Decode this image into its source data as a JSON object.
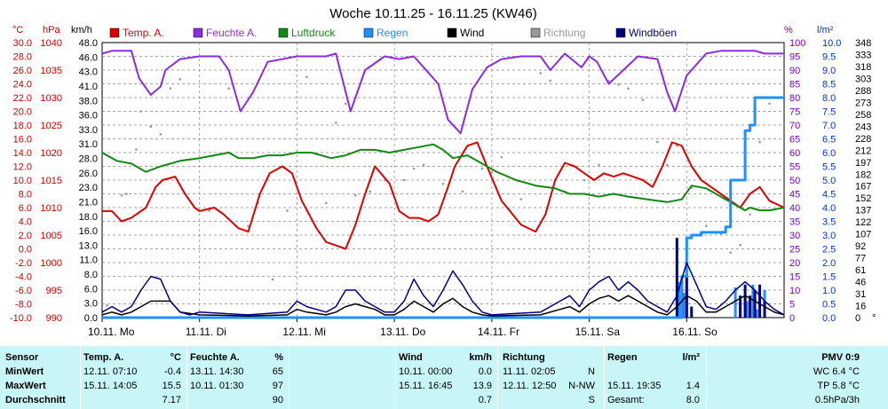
{
  "chart_data": {
    "type": "line",
    "title": "Woche 10.11.25 - 16.11.25 (KW46)",
    "axes": {
      "temp": {
        "unit": "°C",
        "range": [
          -10,
          30
        ],
        "ticks": [
          "30.0",
          "28.0",
          "26.0",
          "24.0",
          "22.0",
          "20.0",
          "18.0",
          "16.0",
          "14.0",
          "12.0",
          "10.0",
          "8.0",
          "6.0",
          "4.0",
          "2.0",
          "0.0",
          "-2.0",
          "-4.0",
          "-6.0",
          "-8.0",
          "-10.0"
        ],
        "color": "#cc0000"
      },
      "pressure": {
        "unit": "hPa",
        "range": [
          990,
          1040
        ],
        "ticks": [
          "1040",
          "1035",
          "1030",
          "1025",
          "1020",
          "1015",
          "1010",
          "1005",
          "1000",
          "995",
          "990"
        ],
        "color": "#cc0000"
      },
      "wind": {
        "unit": "km/h",
        "range": [
          0,
          50
        ],
        "ticks": [
          "48.0",
          "46.0",
          "43.0",
          "41.0",
          "38.0",
          "36.0",
          "33.0",
          "31.0",
          "28.0",
          "26.0",
          "23.0",
          "21.0",
          "18.0",
          "16.0",
          "13.0",
          "11.0",
          "8.0",
          "6.0",
          "3.0",
          "0.0"
        ],
        "color": "#000000"
      },
      "humidity": {
        "unit": "%",
        "range": [
          0,
          100
        ],
        "ticks": [
          "100",
          "95",
          "90",
          "85",
          "80",
          "75",
          "70",
          "65",
          "60",
          "55",
          "50",
          "45",
          "40",
          "35",
          "30",
          "25",
          "20",
          "15",
          "10",
          "5",
          "0"
        ],
        "color": "#7b00cc"
      },
      "rain": {
        "unit": "l/m²",
        "range": [
          0,
          10
        ],
        "ticks": [
          "10.0",
          "9.5",
          "9.0",
          "8.5",
          "8.0",
          "7.5",
          "7.0",
          "6.5",
          "6.0",
          "5.5",
          "5.0",
          "4.5",
          "4.0",
          "3.5",
          "3.0",
          "2.5",
          "2.0",
          "1.5",
          "1.0",
          "0.5",
          "0.0"
        ],
        "color": "#0033cc"
      },
      "direction": {
        "unit": "°",
        "range": [
          0,
          360
        ],
        "ticks": [
          "348",
          "333",
          "318",
          "303",
          "288",
          "273",
          "258",
          "243",
          "228",
          "212",
          "197",
          "182",
          "167",
          "152",
          "137",
          "122",
          "107",
          "92",
          "77",
          "61",
          "46",
          "31",
          "16",
          "0"
        ],
        "color": "#000000"
      }
    },
    "days": [
      "10.11. Mo",
      "11.11. Di",
      "12.11. Mi",
      "13.11. Do",
      "14.11. Fr",
      "15.11. Sa",
      "16.11. So"
    ],
    "legend": [
      {
        "label": "Temp. A.",
        "color": "#dd0000"
      },
      {
        "label": "Feuchte A.",
        "color": "#8b2be2"
      },
      {
        "label": "Luftdruck",
        "color": "#118811"
      },
      {
        "label": "Regen",
        "color": "#1e90ff"
      },
      {
        "label": "Wind",
        "color": "#000000"
      },
      {
        "label": "Richtung",
        "color": "#999999"
      },
      {
        "label": "Windböen",
        "color": "#000080"
      }
    ],
    "series": [
      {
        "name": "Temp. A.",
        "axis": "temp",
        "color": "#dd0000",
        "x": [
          0,
          0.1,
          0.2,
          0.3,
          0.45,
          0.55,
          0.62,
          0.75,
          0.85,
          0.95,
          1.0,
          1.15,
          1.25,
          1.4,
          1.5,
          1.62,
          1.72,
          1.85,
          1.95,
          2.05,
          2.2,
          2.3,
          2.4,
          2.5,
          2.6,
          2.7,
          2.8,
          2.95,
          3.05,
          3.15,
          3.25,
          3.35,
          3.45,
          3.55,
          3.62,
          3.75,
          3.85,
          3.95,
          4.1,
          4.3,
          4.45,
          4.55,
          4.65,
          4.75,
          4.85,
          4.95,
          5.05,
          5.15,
          5.25,
          5.35,
          5.45,
          5.55,
          5.65,
          5.75,
          5.85,
          5.95,
          6.05,
          6.15,
          6.25,
          6.35,
          6.45,
          6.55,
          6.65,
          6.75,
          6.85,
          7.0
        ],
        "values": [
          5.5,
          5.5,
          4,
          4.5,
          6,
          9,
          10,
          10.5,
          8,
          6,
          5.5,
          6,
          5,
          3,
          2.5,
          8,
          11,
          12,
          11,
          7,
          3,
          1,
          0.5,
          0,
          3.5,
          8,
          12,
          9.5,
          5.5,
          4.5,
          4.5,
          4,
          5,
          9,
          12,
          15,
          15.5,
          12,
          7,
          3.5,
          2.5,
          5,
          10,
          12.5,
          12,
          11,
          10,
          11,
          10.5,
          11,
          10.5,
          10,
          9,
          12,
          15.5,
          15,
          12,
          10,
          9,
          8,
          7,
          6,
          8,
          9,
          7,
          6
        ]
      },
      {
        "name": "Feuchte A.",
        "axis": "humidity",
        "color": "#8b2be2",
        "x": [
          0,
          0.1,
          0.3,
          0.38,
          0.5,
          0.6,
          0.65,
          0.8,
          1.0,
          1.2,
          1.3,
          1.42,
          1.55,
          1.7,
          2.0,
          2.15,
          2.3,
          2.4,
          2.55,
          2.7,
          2.9,
          3.05,
          3.2,
          3.3,
          3.45,
          3.55,
          3.68,
          3.8,
          3.95,
          4.1,
          4.3,
          4.5,
          4.6,
          4.75,
          4.92,
          5.0,
          5.08,
          5.2,
          5.35,
          5.5,
          5.7,
          5.8,
          5.88,
          6.0,
          6.2,
          6.35,
          6.5,
          6.6,
          6.7,
          6.8,
          6.9,
          7.0
        ],
        "values": [
          96,
          97,
          97,
          87,
          81,
          84,
          90,
          94,
          95,
          95,
          90,
          75,
          82,
          93,
          95,
          95,
          95,
          96,
          75,
          90,
          95,
          94,
          95,
          91,
          85,
          72,
          67,
          83,
          91,
          94,
          95,
          95,
          90,
          96,
          91,
          95,
          93,
          85,
          90,
          95,
          94,
          82,
          75,
          88,
          96,
          97,
          97,
          97,
          97,
          96,
          96,
          96
        ]
      },
      {
        "name": "Luftdruck",
        "axis": "pressure",
        "color": "#118811",
        "x": [
          0,
          0.15,
          0.3,
          0.45,
          0.6,
          0.8,
          1.0,
          1.15,
          1.3,
          1.4,
          1.55,
          1.7,
          1.85,
          2.0,
          2.15,
          2.35,
          2.5,
          2.65,
          2.8,
          2.95,
          3.1,
          3.25,
          3.4,
          3.5,
          3.6,
          3.75,
          3.9,
          4.05,
          4.25,
          4.45,
          4.65,
          4.8,
          4.95,
          5.1,
          5.25,
          5.4,
          5.6,
          5.8,
          5.95,
          6.05,
          6.2,
          6.3,
          6.4,
          6.5,
          6.6,
          6.65,
          6.75,
          6.85,
          7.0
        ],
        "values": [
          1020,
          1018.5,
          1018,
          1016.5,
          1017.5,
          1018.5,
          1019,
          1019.5,
          1020,
          1019,
          1019,
          1019.5,
          1019.5,
          1020,
          1020,
          1019,
          1019.5,
          1020.5,
          1020.5,
          1020,
          1020.5,
          1021,
          1021.5,
          1020.5,
          1019,
          1019.5,
          1018,
          1016.5,
          1015,
          1014,
          1013.5,
          1012.5,
          1012.5,
          1012,
          1012.5,
          1012,
          1011.5,
          1011,
          1011.5,
          1014,
          1013.5,
          1012.5,
          1011.5,
          1010.5,
          1009.5,
          1010,
          1009.5,
          1009.5,
          1010
        ]
      },
      {
        "name": "Regen",
        "axis": "rain",
        "color": "#1e90ff",
        "x": [
          0,
          5.9,
          5.95,
          6.0,
          6.05,
          6.1,
          6.15,
          6.3,
          6.4,
          6.45,
          6.55,
          6.6,
          6.65,
          6.7,
          6.75,
          6.8,
          6.85,
          6.9,
          7.0
        ],
        "values": [
          0,
          0,
          1.5,
          2.9,
          3,
          3,
          3.1,
          3.1,
          3.3,
          5,
          5,
          6.8,
          7,
          8,
          8,
          8,
          8,
          8,
          8
        ]
      },
      {
        "name": "Wind",
        "axis": "wind",
        "color": "#000000",
        "x": [
          0,
          0.1,
          0.2,
          0.3,
          0.4,
          0.5,
          0.6,
          0.7,
          0.8,
          1.0,
          1.5,
          1.9,
          2.0,
          2.1,
          2.3,
          2.4,
          2.5,
          2.6,
          2.7,
          2.8,
          2.9,
          3.0,
          3.1,
          3.2,
          3.3,
          3.4,
          3.5,
          3.6,
          3.7,
          3.8,
          3.9,
          4.0,
          4.5,
          4.7,
          4.8,
          4.9,
          5.0,
          5.1,
          5.2,
          5.3,
          5.4,
          5.5,
          5.6,
          5.7,
          5.8,
          5.9,
          6.0,
          6.1,
          6.2,
          6.3,
          6.4,
          6.5,
          6.6,
          6.7,
          6.8,
          6.9,
          7.0
        ],
        "values": [
          0.5,
          1,
          0.5,
          1,
          2,
          3,
          3,
          3,
          1,
          0.5,
          0.3,
          0.5,
          1.5,
          1,
          0.5,
          1,
          2,
          2.5,
          2,
          1.5,
          0.5,
          0.5,
          1.5,
          3,
          2,
          1,
          2.5,
          3.5,
          2,
          1,
          0.5,
          0.3,
          0.5,
          1.5,
          2,
          1,
          2.5,
          3.5,
          4,
          3,
          4,
          3,
          2,
          1,
          0.5,
          2,
          4,
          3,
          1,
          1,
          2,
          3,
          4,
          3,
          2,
          1,
          0.5
        ]
      },
      {
        "name": "Windböen",
        "axis": "wind",
        "color": "#000080",
        "x": [
          0,
          0.1,
          0.2,
          0.3,
          0.4,
          0.5,
          0.6,
          0.7,
          0.8,
          0.9,
          1.0,
          1.5,
          1.9,
          2.0,
          2.1,
          2.3,
          2.4,
          2.5,
          2.6,
          2.7,
          2.8,
          2.9,
          3.0,
          3.1,
          3.2,
          3.3,
          3.4,
          3.5,
          3.6,
          3.7,
          3.8,
          3.9,
          4.0,
          4.5,
          4.7,
          4.8,
          4.9,
          5.0,
          5.1,
          5.2,
          5.3,
          5.4,
          5.5,
          5.6,
          5.7,
          5.8,
          5.9,
          6.0,
          6.1,
          6.2,
          6.3,
          6.4,
          6.5,
          6.6,
          6.7,
          6.8,
          6.9,
          7.0
        ],
        "values": [
          1,
          2,
          1,
          2,
          5,
          7.5,
          7,
          3,
          1,
          0.5,
          1,
          0.5,
          1,
          3,
          2,
          1,
          2,
          5,
          5,
          3,
          2,
          1,
          1,
          3,
          7,
          4,
          2,
          5,
          8.5,
          6,
          3,
          1,
          0.5,
          1,
          3,
          4,
          2,
          5,
          6.5,
          7.5,
          5,
          6.5,
          5,
          3,
          2,
          1,
          4,
          10,
          6,
          2,
          1.5,
          3,
          5,
          6.5,
          5,
          3,
          1.5,
          0.5
        ]
      }
    ],
    "bars": [
      {
        "name": "Regen",
        "axis": "rain",
        "color": "#1e90ff",
        "x": [
          5.92,
          5.97,
          6.0,
          6.5,
          6.55,
          6.6,
          6.62,
          6.68,
          6.72,
          6.8
        ],
        "values": [
          1.3,
          0.9,
          1.4,
          1.1,
          0.4,
          0.8,
          0.6,
          1.2,
          0.3,
          1.0
        ]
      },
      {
        "name": "Windböen",
        "axis": "wind",
        "color": "#000080",
        "x": [
          5.9,
          5.95,
          6.0,
          6.05,
          6.55,
          6.6,
          6.65,
          6.7,
          6.75,
          6.8
        ],
        "values": [
          14.5,
          7,
          8,
          2,
          4,
          6,
          4,
          5,
          6,
          3
        ]
      }
    ],
    "direction_points": {
      "axis": "direction",
      "color": "#999999",
      "x": [
        0.05,
        0.2,
        0.25,
        0.35,
        0.4,
        0.5,
        0.6,
        0.7,
        0.8,
        1.1,
        1.3,
        1.5,
        1.6,
        1.75,
        1.9,
        2.1,
        2.3,
        2.4,
        2.5,
        2.6,
        2.75,
        2.9,
        3.1,
        3.2,
        3.3,
        3.5,
        3.7,
        3.9,
        4.0,
        4.1,
        4.3,
        4.5,
        4.6,
        4.75,
        4.95,
        5.1,
        5.2,
        5.3,
        5.4,
        5.55,
        5.7,
        5.8,
        5.9,
        6.05,
        6.2,
        6.35,
        6.45,
        6.55,
        6.65,
        6.75,
        6.85
      ],
      "values": [
        16,
        160,
        162,
        220,
        270,
        250,
        240,
        300,
        312,
        140,
        300,
        120,
        150,
        50,
        140,
        315,
        150,
        255,
        280,
        160,
        165,
        180,
        180,
        195,
        200,
        175,
        165,
        195,
        190,
        210,
        155,
        320,
        310,
        165,
        180,
        200,
        310,
        305,
        300,
        285,
        230,
        200,
        225,
        170,
        120,
        110,
        85,
        95,
        135,
        230,
        280
      ]
    },
    "stats": {
      "title": "Sensor",
      "rows": [
        "MinWert",
        "MaxWert",
        "Durchschnitt"
      ],
      "temp": {
        "header": "Temp. A.",
        "unit": "°C",
        "min_date": "12.11.  07:10",
        "min": "-0.4",
        "max_date": "15.11.  14:05",
        "max": "15.5",
        "avg": "7.17"
      },
      "humidity": {
        "header": "Feuchte A.",
        "unit": "%",
        "min_date": "13.11.  14:30",
        "min": "65",
        "max_date": "10.11.  01:30",
        "max": "97",
        "avg": "90"
      },
      "wind": {
        "header": "Wind",
        "unit": "km/h",
        "min_date": "10.11.  00:00",
        "min": "0.0",
        "max_date": "15.11.  16:45",
        "max": "13.9",
        "avg": "0.7"
      },
      "direction": {
        "header": "Richtung",
        "min_date": "11.11.  02:05",
        "min": "N",
        "max_date": "12.11.  12:50",
        "max": "N-NW",
        "avg": "S"
      },
      "rain": {
        "header": "Regen",
        "unit": "l/m²",
        "max_date": "15.11.  19:35",
        "max": "1.4",
        "total_label": "Gesamt:",
        "total": "8.0"
      },
      "pmv": {
        "title": "PMV 0:9",
        "wc": "WC 6.4 °C",
        "tp": "TP 5.8 °C",
        "rate": "0.5hPa/3h"
      }
    }
  }
}
